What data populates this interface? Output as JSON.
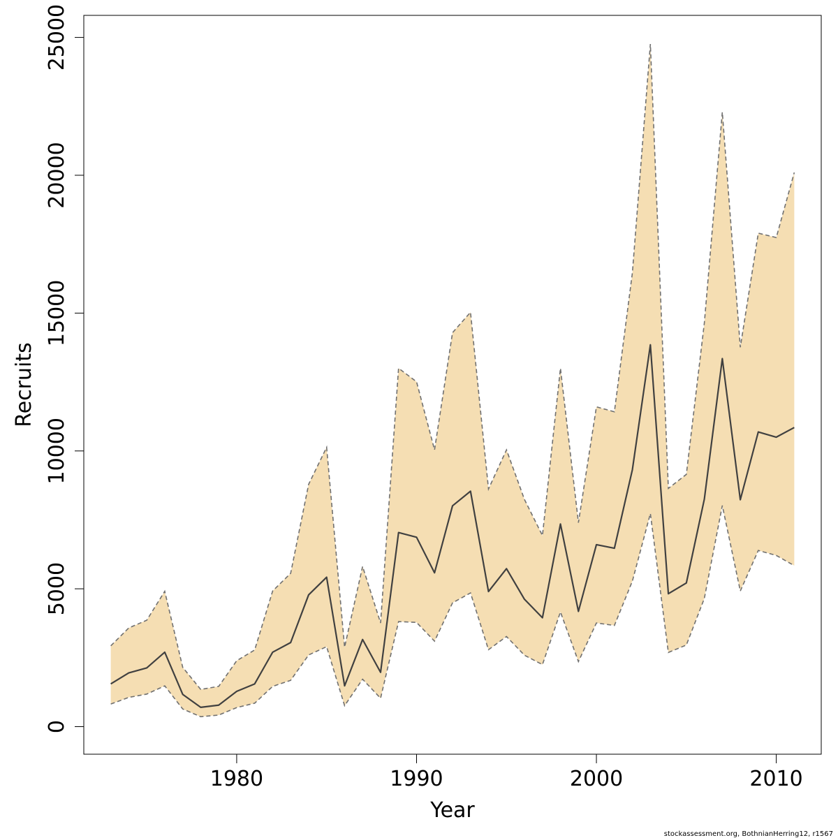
{
  "chart_data": {
    "type": "area",
    "xlabel": "Year",
    "ylabel": "Recruits",
    "xlim": [
      1971.5,
      2012.5
    ],
    "ylim": [
      -1000,
      25800
    ],
    "x_ticks": [
      1980,
      1990,
      2000,
      2010
    ],
    "y_ticks": [
      0,
      5000,
      10000,
      15000,
      20000,
      25000
    ],
    "grid": false,
    "credit": "stockassessment.org, BothnianHerring12, r1567",
    "colors": {
      "band": "#f5deb3",
      "line": "#404040",
      "bound": "#707070"
    },
    "x": [
      1973,
      1974,
      1975,
      1976,
      1977,
      1978,
      1979,
      1980,
      1981,
      1982,
      1983,
      1984,
      1985,
      1986,
      1987,
      1988,
      1989,
      1990,
      1991,
      1992,
      1993,
      1994,
      1995,
      1996,
      1997,
      1998,
      1999,
      2000,
      2001,
      2002,
      2003,
      2004,
      2005,
      2006,
      2007,
      2008,
      2009,
      2010,
      2011
    ],
    "series": [
      {
        "role": "estimate",
        "values": [
          1550,
          1950,
          2130,
          2700,
          1170,
          700,
          780,
          1280,
          1550,
          2700,
          3050,
          4780,
          5420,
          1480,
          3160,
          1970,
          7040,
          6870,
          5580,
          8010,
          8540,
          4900,
          5730,
          4620,
          3950,
          7350,
          4180,
          6600,
          6470,
          9320,
          13850,
          4820,
          5210,
          8250,
          13350,
          8230,
          10690,
          10500,
          10850
        ]
      },
      {
        "role": "upper",
        "values": [
          2930,
          3580,
          3860,
          4910,
          2150,
          1350,
          1460,
          2390,
          2780,
          4920,
          5560,
          8790,
          10130,
          2880,
          5810,
          3760,
          13000,
          12510,
          10040,
          14290,
          15030,
          8620,
          10040,
          8240,
          6930,
          13000,
          7400,
          11600,
          11420,
          16460,
          24760,
          8640,
          9150,
          14640,
          22290,
          13760,
          17900,
          17740,
          20100
        ]
      },
      {
        "role": "lower",
        "values": [
          820,
          1060,
          1180,
          1480,
          640,
          360,
          420,
          690,
          850,
          1460,
          1680,
          2600,
          2900,
          760,
          1720,
          1030,
          3810,
          3780,
          3100,
          4490,
          4850,
          2790,
          3270,
          2590,
          2250,
          4160,
          2360,
          3760,
          3670,
          5280,
          7730,
          2690,
          2960,
          4650,
          8020,
          4920,
          6390,
          6210,
          5840
        ]
      }
    ]
  }
}
